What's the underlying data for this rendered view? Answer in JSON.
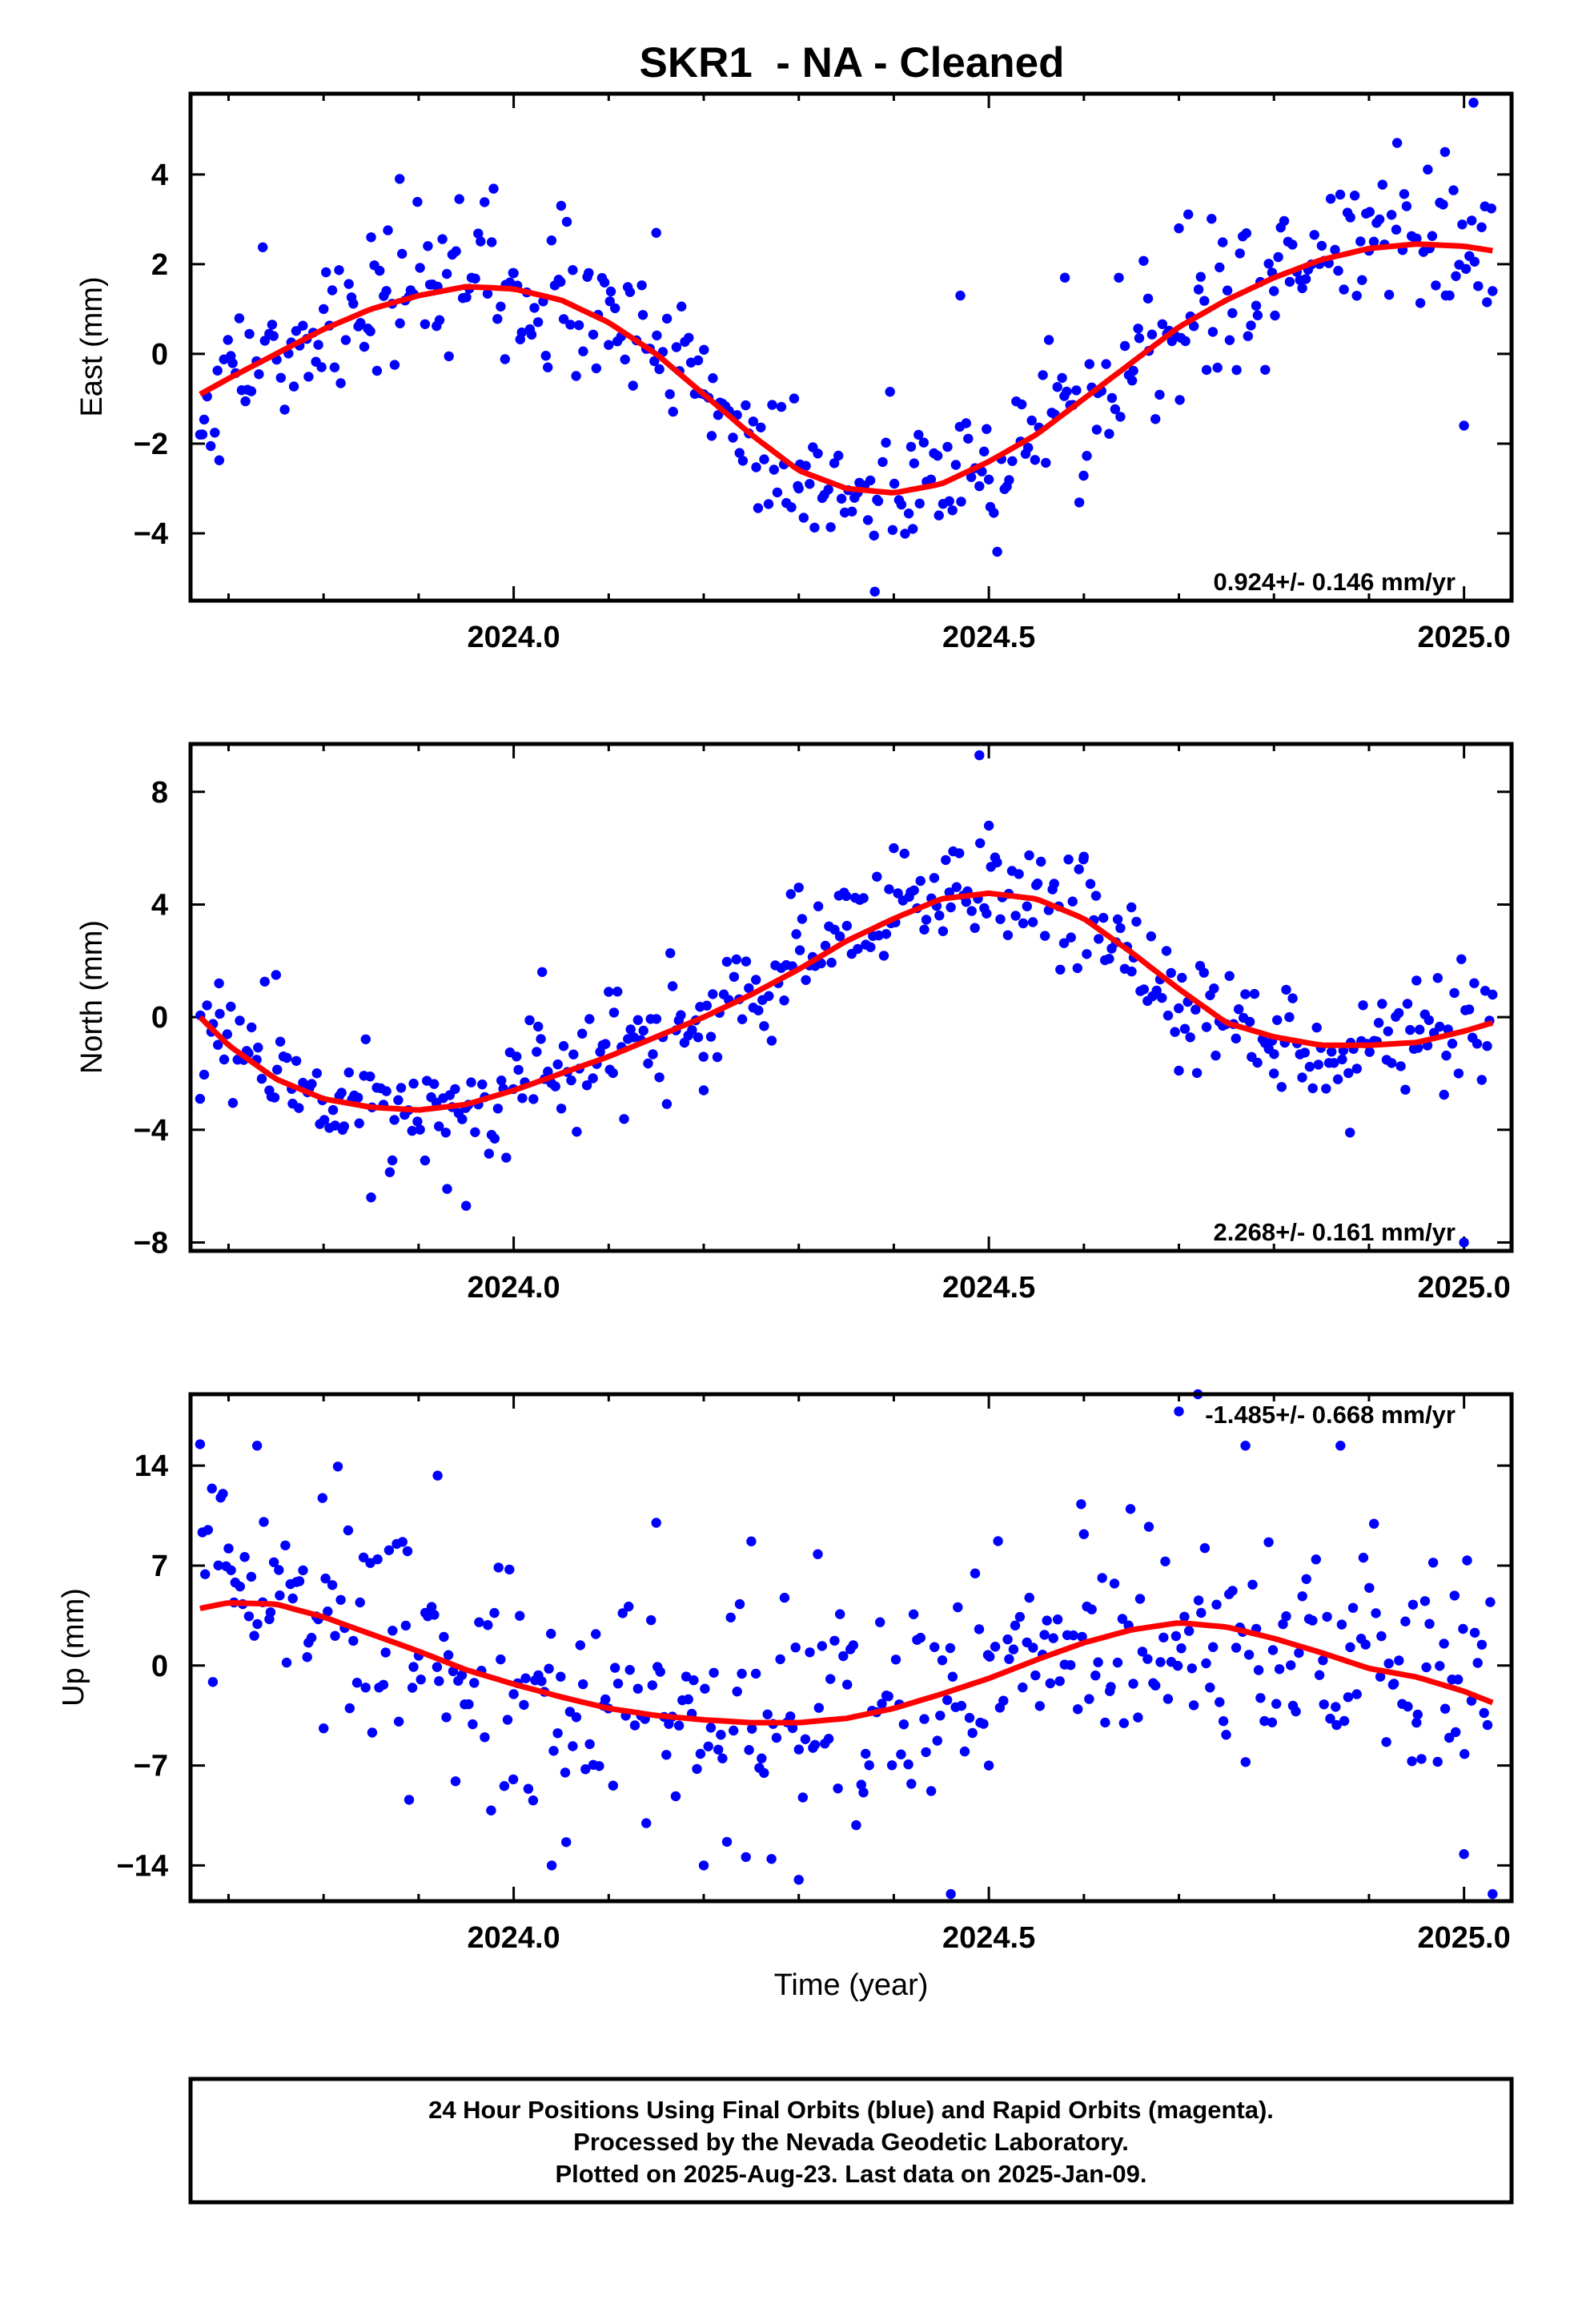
{
  "figure": {
    "title": "SKR1  - NA - Cleaned",
    "xlabel": "Time (year)",
    "caption": [
      "24 Hour Positions Using Final Orbits (blue) and Rapid Orbits (magenta).",
      "Processed by the Nevada Geodetic Laboratory.",
      "Plotted on 2025-Aug-23. Last data on 2025-Jan-09."
    ],
    "colors": {
      "data_points": "#0000ff",
      "model_fit": "#ff0000",
      "frame": "#000000"
    }
  },
  "chart_data": [
    {
      "type": "scatter",
      "panel": "east",
      "ylabel": "East (mm)",
      "rate_text": "0.924+/- 0.146 mm/yr",
      "rate_position": "bottom-right",
      "xlim": [
        23.66,
        25.05
      ],
      "ylim": [
        -5.5,
        5.8
      ],
      "x_ticks": [
        24.0,
        24.5,
        25.0
      ],
      "x_tick_labels": [
        "2024.0",
        "2024.5",
        "2025.0"
      ],
      "x_minor_ticks": [
        23.7,
        23.8,
        23.9,
        24.1,
        24.2,
        24.3,
        24.4,
        24.6,
        24.7,
        24.8,
        24.9
      ],
      "y_ticks": [
        -4,
        -2,
        0,
        2,
        4
      ],
      "y_tick_labels": [
        "−4",
        "−2",
        "0",
        "2",
        "4"
      ],
      "fit": {
        "name": "",
        "color": "#ff0000",
        "x": [
          23.67,
          23.7,
          23.75,
          23.8,
          23.85,
          23.9,
          23.95,
          24.0,
          24.05,
          24.1,
          24.15,
          24.2,
          24.25,
          24.3,
          24.35,
          24.4,
          24.45,
          24.5,
          24.55,
          24.6,
          24.65,
          24.7,
          24.75,
          24.8,
          24.85,
          24.9,
          24.95,
          25.0,
          25.03
        ],
        "y": [
          -0.9,
          -0.55,
          0.0,
          0.55,
          1.0,
          1.3,
          1.5,
          1.45,
          1.2,
          0.7,
          0.0,
          -0.9,
          -1.8,
          -2.6,
          -3.0,
          -3.1,
          -2.9,
          -2.4,
          -1.8,
          -1.0,
          -0.2,
          0.6,
          1.2,
          1.7,
          2.1,
          2.35,
          2.45,
          2.4,
          2.3
        ]
      },
      "points_band": {
        "name": "",
        "color": "#0000ff",
        "scatter_sd": 0.85,
        "count": 430,
        "sample": [
          [
            23.67,
            -1.8
          ],
          [
            23.72,
            -0.8
          ],
          [
            23.8,
            1.0
          ],
          [
            23.85,
            2.6
          ],
          [
            23.88,
            3.9
          ],
          [
            23.92,
            1.5
          ],
          [
            24.0,
            1.8
          ],
          [
            24.05,
            3.3
          ],
          [
            24.1,
            0.2
          ],
          [
            24.15,
            2.7
          ],
          [
            24.2,
            -0.9
          ],
          [
            24.3,
            -3.0
          ],
          [
            24.38,
            -5.3
          ],
          [
            24.42,
            -3.9
          ],
          [
            24.47,
            1.3
          ],
          [
            24.5,
            -2.8
          ],
          [
            24.58,
            1.7
          ],
          [
            24.7,
            2.8
          ],
          [
            24.8,
            1.4
          ],
          [
            24.9,
            2.3
          ],
          [
            24.98,
            4.5
          ],
          [
            25.0,
            -1.6
          ],
          [
            25.01,
            5.6
          ],
          [
            25.03,
            1.4
          ]
        ]
      }
    },
    {
      "type": "scatter",
      "panel": "north",
      "ylabel": "North (mm)",
      "rate_text": "2.268+/- 0.161 mm/yr",
      "rate_position": "bottom-right",
      "xlim": [
        23.66,
        25.05
      ],
      "ylim": [
        -8.3,
        9.7
      ],
      "x_ticks": [
        24.0,
        24.5,
        25.0
      ],
      "x_tick_labels": [
        "2024.0",
        "2024.5",
        "2025.0"
      ],
      "x_minor_ticks": [
        23.7,
        23.8,
        23.9,
        24.1,
        24.2,
        24.3,
        24.4,
        24.6,
        24.7,
        24.8,
        24.9
      ],
      "y_ticks": [
        -8,
        -4,
        0,
        4,
        8
      ],
      "y_tick_labels": [
        "−8",
        "−4",
        "0",
        "4",
        "8"
      ],
      "fit": {
        "name": "",
        "color": "#ff0000",
        "x": [
          23.67,
          23.7,
          23.75,
          23.8,
          23.85,
          23.9,
          23.95,
          24.0,
          24.05,
          24.1,
          24.15,
          24.2,
          24.25,
          24.3,
          24.35,
          24.4,
          24.45,
          24.5,
          24.55,
          24.6,
          24.65,
          24.7,
          24.75,
          24.8,
          24.85,
          24.9,
          24.95,
          25.0,
          25.03
        ],
        "y": [
          0.0,
          -1.0,
          -2.2,
          -2.9,
          -3.2,
          -3.3,
          -3.1,
          -2.6,
          -2.0,
          -1.4,
          -0.7,
          0.0,
          0.8,
          1.7,
          2.7,
          3.5,
          4.2,
          4.4,
          4.2,
          3.5,
          2.3,
          1.0,
          -0.2,
          -0.7,
          -1.0,
          -1.0,
          -0.9,
          -0.5,
          -0.2
        ]
      },
      "points_band": {
        "name": "",
        "color": "#0000ff",
        "scatter_sd": 0.95,
        "count": 430,
        "sample": [
          [
            23.67,
            -2.9
          ],
          [
            23.69,
            1.2
          ],
          [
            23.75,
            1.5
          ],
          [
            23.82,
            -4.0
          ],
          [
            23.85,
            -6.4
          ],
          [
            23.93,
            -6.1
          ],
          [
            23.95,
            -6.7
          ],
          [
            24.03,
            1.6
          ],
          [
            24.1,
            0.9
          ],
          [
            24.2,
            -2.6
          ],
          [
            24.3,
            4.6
          ],
          [
            24.35,
            4.3
          ],
          [
            24.4,
            6.0
          ],
          [
            24.46,
            3.9
          ],
          [
            24.49,
            9.3
          ],
          [
            24.5,
            6.8
          ],
          [
            24.6,
            5.7
          ],
          [
            24.65,
            3.9
          ],
          [
            24.7,
            -1.9
          ],
          [
            24.8,
            -2.0
          ],
          [
            24.88,
            -4.1
          ],
          [
            24.95,
            1.3
          ],
          [
            25.0,
            -8.0
          ],
          [
            25.03,
            0.8
          ]
        ]
      }
    },
    {
      "type": "scatter",
      "panel": "up",
      "ylabel": "Up (mm)",
      "rate_text": "-1.485+/- 0.668 mm/yr",
      "rate_position": "top-right",
      "xlim": [
        23.66,
        25.05
      ],
      "ylim": [
        -16.5,
        19.0
      ],
      "x_ticks": [
        24.0,
        24.5,
        25.0
      ],
      "x_tick_labels": [
        "2024.0",
        "2024.5",
        "2025.0"
      ],
      "x_minor_ticks": [
        23.7,
        23.8,
        23.9,
        24.1,
        24.2,
        24.3,
        24.4,
        24.6,
        24.7,
        24.8,
        24.9
      ],
      "y_ticks": [
        -14,
        -7,
        0,
        7,
        14
      ],
      "y_tick_labels": [
        "−14",
        "−7",
        "0",
        "7",
        "14"
      ],
      "fit": {
        "name": "",
        "color": "#ff0000",
        "x": [
          23.67,
          23.7,
          23.75,
          23.8,
          23.85,
          23.9,
          23.95,
          24.0,
          24.05,
          24.1,
          24.15,
          24.2,
          24.25,
          24.3,
          24.35,
          24.4,
          24.45,
          24.5,
          24.55,
          24.6,
          24.65,
          24.7,
          24.75,
          24.8,
          24.85,
          24.9,
          24.95,
          25.0,
          25.03
        ],
        "y": [
          4.0,
          4.4,
          4.3,
          3.4,
          2.2,
          1.0,
          -0.3,
          -1.3,
          -2.2,
          -3.0,
          -3.5,
          -3.8,
          -4.0,
          -4.0,
          -3.7,
          -3.0,
          -2.0,
          -0.9,
          0.4,
          1.6,
          2.5,
          3.0,
          2.7,
          1.9,
          0.9,
          -0.2,
          -0.8,
          -1.8,
          -2.6
        ]
      },
      "points_band": {
        "name": "",
        "color": "#0000ff",
        "scatter_sd": 3.9,
        "count": 430,
        "sample": [
          [
            23.67,
            15.5
          ],
          [
            23.7,
            8.2
          ],
          [
            23.73,
            15.4
          ],
          [
            23.8,
            -4.4
          ],
          [
            23.89,
            -9.4
          ],
          [
            23.92,
            13.3
          ],
          [
            24.0,
            -2.0
          ],
          [
            24.04,
            -14.0
          ],
          [
            24.15,
            10.0
          ],
          [
            24.2,
            -14.0
          ],
          [
            24.25,
            8.7
          ],
          [
            24.3,
            -15.0
          ],
          [
            24.32,
            7.8
          ],
          [
            24.46,
            -16.0
          ],
          [
            24.5,
            -7.0
          ],
          [
            24.6,
            9.2
          ],
          [
            24.7,
            17.8
          ],
          [
            24.72,
            19.0
          ],
          [
            24.77,
            15.4
          ],
          [
            24.87,
            15.4
          ],
          [
            24.95,
            -4.0
          ],
          [
            24.99,
            4.9
          ],
          [
            25.0,
            -13.2
          ],
          [
            25.03,
            -16.0
          ]
        ]
      }
    }
  ]
}
